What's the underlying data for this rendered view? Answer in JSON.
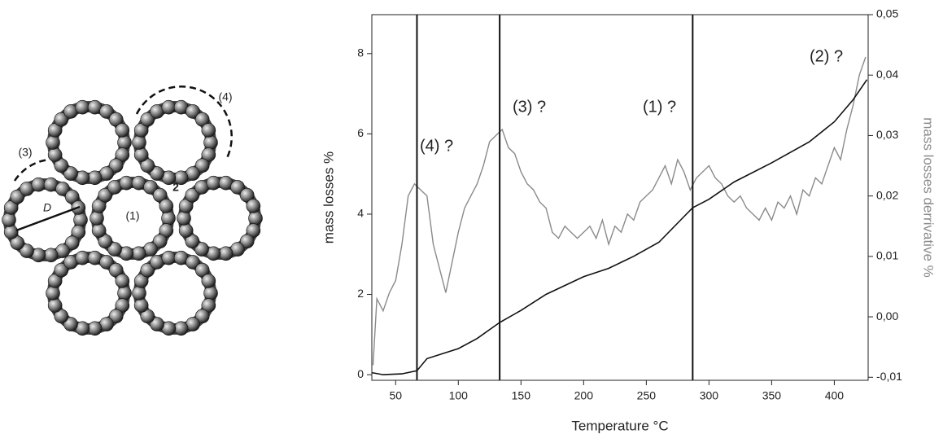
{
  "diagram": {
    "label_1": "(1)",
    "label_2": "2",
    "label_3": "(3)",
    "label_4": "(4)",
    "label_d": "D"
  },
  "chart_data": {
    "type": "line",
    "xlabel": "Temperature °C",
    "ylabel": "mass losses %",
    "y2label": "mass losses derrivative %",
    "xlim": [
      31,
      427
    ],
    "xticks": [
      50,
      100,
      150,
      200,
      250,
      300,
      350,
      400
    ],
    "ylim": [
      -0.14,
      8.97
    ],
    "yticks": [
      0,
      2,
      4,
      6,
      8
    ],
    "y2lim": [
      -0.0105,
      0.05
    ],
    "y2ticks": [
      {
        "value": -0.01,
        "label": "-0,01"
      },
      {
        "value": 0,
        "label": "0,00"
      },
      {
        "value": 0.01,
        "label": "0,01"
      },
      {
        "value": 0.02,
        "label": "0,02"
      },
      {
        "value": 0.03,
        "label": "0,03"
      },
      {
        "value": 0.04,
        "label": "0,04"
      },
      {
        "value": 0.05,
        "label": "0,05"
      }
    ],
    "vlines": [
      67,
      133,
      287
    ],
    "annotations": [
      "(4) ?",
      "(3) ?",
      "(1) ?",
      "(2) ?"
    ],
    "series": [
      {
        "color": "#111111",
        "x": [
          31,
          40,
          55,
          67,
          75,
          90,
          100,
          115,
          133,
          150,
          170,
          200,
          220,
          240,
          260,
          287,
          300,
          320,
          350,
          380,
          400,
          415,
          426
        ],
        "values": [
          0.05,
          0,
          0.02,
          0.1,
          0.4,
          0.55,
          0.65,
          0.9,
          1.3,
          1.6,
          2.0,
          2.44,
          2.65,
          2.95,
          3.3,
          4.16,
          4.37,
          4.8,
          5.28,
          5.8,
          6.3,
          6.85,
          7.35
        ]
      },
      {
        "color": "#8a8a8a",
        "axis": "y2",
        "x": [
          32,
          35,
          40,
          45,
          50,
          55,
          60,
          65,
          70,
          75,
          80,
          85,
          90,
          95,
          100,
          105,
          110,
          115,
          120,
          125,
          130,
          135,
          140,
          145,
          150,
          155,
          160,
          165,
          170,
          175,
          180,
          185,
          190,
          195,
          200,
          205,
          210,
          215,
          220,
          225,
          230,
          235,
          240,
          245,
          250,
          255,
          260,
          265,
          270,
          275,
          280,
          285,
          290,
          295,
          300,
          305,
          310,
          315,
          320,
          325,
          330,
          335,
          340,
          345,
          350,
          355,
          360,
          365,
          370,
          375,
          380,
          385,
          390,
          395,
          400,
          405,
          410,
          415,
          420,
          425
        ],
        "values": [
          -0.008,
          0.003,
          0.001,
          0.004,
          0.006,
          0.012,
          0.02,
          0.022,
          0.021,
          0.02,
          0.012,
          0.008,
          0.004,
          0.009,
          0.014,
          0.018,
          0.02,
          0.022,
          0.025,
          0.029,
          0.03,
          0.031,
          0.028,
          0.027,
          0.024,
          0.022,
          0.021,
          0.019,
          0.018,
          0.014,
          0.013,
          0.015,
          0.014,
          0.013,
          0.014,
          0.015,
          0.013,
          0.016,
          0.012,
          0.015,
          0.014,
          0.017,
          0.016,
          0.019,
          0.02,
          0.021,
          0.023,
          0.025,
          0.022,
          0.026,
          0.024,
          0.021,
          0.023,
          0.024,
          0.025,
          0.023,
          0.022,
          0.02,
          0.019,
          0.02,
          0.018,
          0.017,
          0.016,
          0.018,
          0.016,
          0.019,
          0.018,
          0.02,
          0.017,
          0.021,
          0.02,
          0.023,
          0.022,
          0.025,
          0.028,
          0.026,
          0.031,
          0.035,
          0.04,
          0.043
        ]
      }
    ]
  }
}
